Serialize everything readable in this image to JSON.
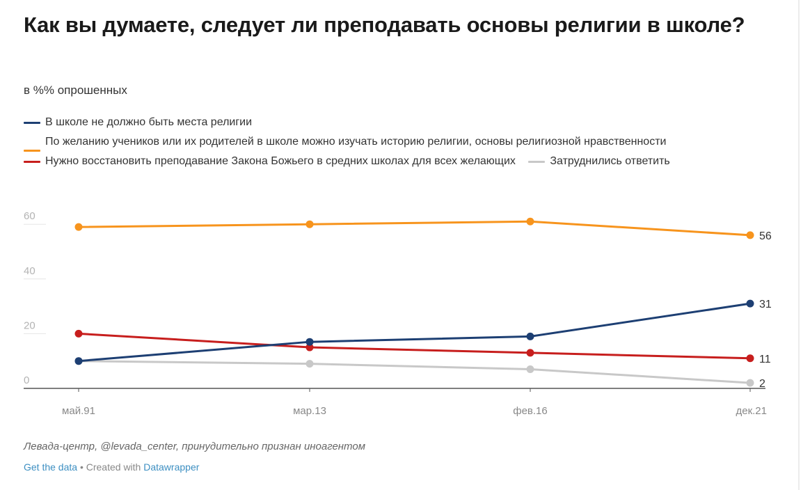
{
  "header": {
    "title": "Как вы думаете, следует ли преподавать основы религии в школе?",
    "subtitle": "в %% опрошенных"
  },
  "footer": {
    "source": "Левада-центр, @levada_center, принудительно признан иноагентом",
    "get_data": "Get the data",
    "separator": " • Created with ",
    "datawrapper": "Datawrapper"
  },
  "chart_data": {
    "type": "line",
    "title": "Как вы думаете, следует ли преподавать основы религии в школе?",
    "subtitle": "в %% опрошенных",
    "xlabel": "",
    "ylabel": "",
    "x": [
      "май.91",
      "мар.13",
      "фев.16",
      "дек.21"
    ],
    "ylim": [
      0,
      60
    ],
    "yticks": [
      "0",
      "20",
      "40",
      "60"
    ],
    "grid": true,
    "legend_position": "top",
    "series": [
      {
        "name": "В школе не должно быть места религии",
        "color": "#1d3f73",
        "values": [
          10,
          17,
          19,
          31
        ],
        "end_label": "31"
      },
      {
        "name": "По желанию учеников или их родителей в школе можно изучать историю религии, основы религиозной нравственности",
        "color": "#f7941d",
        "values": [
          59,
          60,
          61,
          56
        ],
        "end_label": "56"
      },
      {
        "name": "Нужно восстановить преподавание Закона Божьего в средних школах для всех желающих",
        "color": "#c71e1d",
        "values": [
          20,
          15,
          13,
          11
        ],
        "end_label": "11"
      },
      {
        "name": "Затруднились ответить",
        "color": "#c8c8c8",
        "values": [
          10,
          9,
          7,
          2
        ],
        "end_label": "2"
      }
    ]
  }
}
